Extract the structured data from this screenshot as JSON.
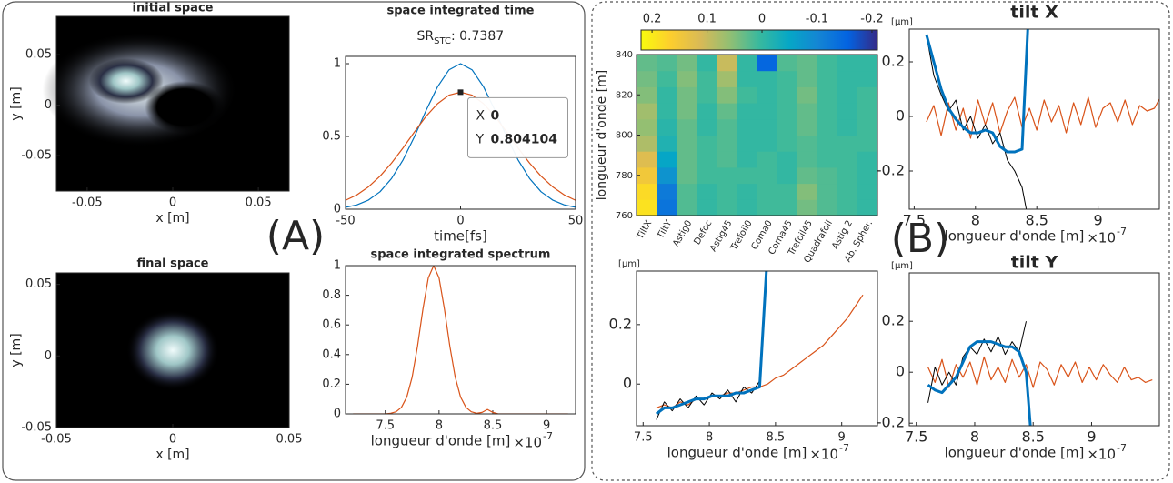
{
  "panel_labels": [
    "(A)",
    "(B)"
  ],
  "chart_data": [
    {
      "type": "image",
      "title": "initial space",
      "xlabel": "x [m]",
      "ylabel": "y [m]",
      "xlim": [
        -0.068,
        0.068
      ],
      "xticks": [
        -0.05,
        0,
        0.05
      ],
      "ylim": [
        -0.085,
        0.088
      ],
      "yticks": [
        0.05,
        0,
        -0.05
      ]
    },
    {
      "type": "line",
      "title": "space integrated time",
      "annotation": {
        "text": "SR",
        "subscript": "STC",
        "suffix": ": 0.7387"
      },
      "xlabel": "time[fs]",
      "xlim": [
        -50,
        50
      ],
      "xticks": [
        -50,
        0,
        50
      ],
      "ylim": [
        0,
        1.05
      ],
      "yticks": [
        0,
        0.5,
        1
      ],
      "x": [
        -50,
        -45,
        -40,
        -35,
        -30,
        -25,
        -20,
        -15,
        -10,
        -5,
        0,
        5,
        10,
        15,
        20,
        25,
        30,
        35,
        40,
        45,
        50
      ],
      "series": [
        {
          "color": "#0072bd",
          "linewidth": 1.2,
          "values": [
            0.013,
            0.03,
            0.063,
            0.12,
            0.211,
            0.339,
            0.5,
            0.678,
            0.841,
            0.958,
            1,
            0.958,
            0.841,
            0.678,
            0.5,
            0.339,
            0.211,
            0.12,
            0.063,
            0.03,
            0.013
          ]
        },
        {
          "color": "#d95319",
          "linewidth": 1.2,
          "values": [
            0.061,
            0.099,
            0.154,
            0.227,
            0.317,
            0.421,
            0.532,
            0.638,
            0.725,
            0.784,
            0.804,
            0.784,
            0.725,
            0.638,
            0.532,
            0.421,
            0.317,
            0.227,
            0.154,
            0.099,
            0.061
          ]
        }
      ],
      "datatip": {
        "x_name": "X",
        "x": 0,
        "y_name": "Y",
        "y": 0.804104
      }
    },
    {
      "type": "image",
      "title": "final space",
      "xlabel": "x [m]",
      "ylabel": "y [m]",
      "xlim": [
        -0.05,
        0.05
      ],
      "xticks": [
        -0.05,
        0,
        0.05
      ],
      "ylim": [
        -0.05,
        0.058
      ],
      "yticks": [
        0.05,
        0,
        -0.05
      ]
    },
    {
      "type": "line",
      "title": "space integrated spectrum",
      "xlabel": "longueur d'onde [m]",
      "x_multiplier": {
        "base": "×10",
        "exponent": "-7"
      },
      "xlim": [
        7.13,
        9.27
      ],
      "xticks": [
        7.5,
        8,
        8.5,
        9
      ],
      "ylim": [
        0,
        1
      ],
      "yticks": [
        0,
        0.2,
        0.4,
        0.6,
        0.8,
        1
      ],
      "x": [
        7.2,
        7.25,
        7.3,
        7.35,
        7.4,
        7.45,
        7.5,
        7.55,
        7.6,
        7.65,
        7.7,
        7.75,
        7.8,
        7.85,
        7.9,
        7.95,
        8,
        8.05,
        8.1,
        8.15,
        8.2,
        8.25,
        8.3,
        8.35,
        8.4,
        8.45,
        8.5,
        8.55,
        8.6,
        8.65,
        8.7,
        8.75,
        8.8,
        8.85,
        8.9,
        8.95,
        9,
        9.05,
        9.1,
        9.15,
        9.2
      ],
      "series": [
        {
          "color": "#d95319",
          "linewidth": 1.2,
          "values": [
            0,
            0,
            0,
            0,
            0,
            0,
            0,
            0.004,
            0.014,
            0.044,
            0.114,
            0.249,
            0.458,
            0.707,
            0.917,
            1,
            0.917,
            0.707,
            0.458,
            0.249,
            0.114,
            0.044,
            0.014,
            0.004,
            0.01,
            0.03,
            0.01,
            0,
            0,
            0,
            0,
            0,
            0,
            0,
            0,
            0,
            0,
            0,
            0,
            0,
            0
          ]
        }
      ]
    },
    {
      "type": "heatmap",
      "ylabel": "longueur d'onde [m]",
      "ylim": [
        760,
        840
      ],
      "yticks": [
        760,
        780,
        800,
        820,
        840
      ],
      "categories": [
        "TiltX",
        "TiltY",
        "Astig0",
        "Defoc",
        "Astig45",
        "Trefoil0",
        "Coma0",
        "Coma45",
        "Trefoil45",
        "Quadrafoil",
        "Astig 2",
        "Ab. Spher."
      ],
      "clim": [
        0.22,
        -0.21
      ],
      "cticks": [
        0.2,
        0.1,
        0,
        -0.1,
        -0.2
      ],
      "colormap": [
        "#f9fb0e",
        "#fcce2e",
        "#d9ba56",
        "#92bf73",
        "#38b99e",
        "#06a7c6",
        "#1485d4",
        "#0363e1",
        "#352a87"
      ],
      "values": [
        [
          0.19,
          -0.13,
          0.02,
          0,
          0.01,
          0,
          0.01,
          0.01,
          0.04,
          0.02,
          0.01,
          0
        ],
        [
          0.18,
          -0.12,
          0.02,
          0,
          0.01,
          0,
          0.01,
          0.01,
          0.05,
          0.02,
          0.01,
          0
        ],
        [
          0.15,
          -0.08,
          0.03,
          0.01,
          0.01,
          0.01,
          0.01,
          0,
          0.03,
          0.02,
          0.01,
          0
        ],
        [
          0.12,
          -0.05,
          0.03,
          0.01,
          0.02,
          0,
          0.01,
          0,
          0.02,
          0.01,
          0.01,
          0
        ],
        [
          0.08,
          -0.02,
          0.03,
          0.01,
          0.02,
          0,
          0,
          0.01,
          0.02,
          0.01,
          0.01,
          0.01
        ],
        [
          0.06,
          -0.01,
          0.03,
          0,
          0.02,
          0,
          0,
          0.01,
          0.03,
          0.01,
          0,
          0.01
        ],
        [
          0.07,
          0,
          0.04,
          0,
          0.03,
          0,
          0,
          0.01,
          0.03,
          0.01,
          0,
          0.01
        ],
        [
          0.05,
          0,
          0.04,
          0.01,
          0.05,
          0.01,
          0,
          0.01,
          0.04,
          0.01,
          0,
          0.01
        ],
        [
          0.04,
          0.01,
          0.05,
          0.01,
          0.07,
          0,
          0,
          0.01,
          0.03,
          0.01,
          0,
          0
        ],
        [
          0.03,
          0.02,
          0.04,
          0,
          0.1,
          0,
          -0.15,
          0.02,
          0.03,
          0.01,
          0,
          0
        ]
      ]
    },
    {
      "type": "line",
      "title": "tilt X",
      "ylabel": "[µm]",
      "xlabel": "longueur d'onde [m]",
      "x_multiplier": {
        "base": "×10",
        "exponent": "-7"
      },
      "xlim": [
        7.46,
        9.5
      ],
      "xticks": [
        7.5,
        8,
        8.5,
        9
      ],
      "ylim": [
        -0.34,
        0.32
      ],
      "yticks": [
        -0.2,
        0,
        0.2
      ],
      "x": [
        7.6,
        7.66,
        7.72,
        7.78,
        7.84,
        7.9,
        7.96,
        8.02,
        8.08,
        8.14,
        8.2,
        8.26,
        8.32,
        8.38,
        8.44,
        8.5,
        8.56,
        8.62,
        8.68,
        8.74,
        8.8,
        8.86,
        8.92,
        8.98,
        9.04,
        9.1,
        9.16,
        9.22,
        9.28,
        9.34,
        9.4,
        9.46,
        9.52
      ],
      "series": [
        {
          "color": "#d95319",
          "linewidth": 1.2,
          "values": [
            -0.02,
            0.04,
            -0.07,
            0.05,
            -0.05,
            0.03,
            -0.08,
            0.06,
            -0.03,
            0.05,
            -0.06,
            0.02,
            0.07,
            -0.04,
            0.03,
            -0.05,
            0.06,
            -0.02,
            0.04,
            -0.06,
            0.05,
            -0.03,
            0.07,
            -0.04,
            0.03,
            0.05,
            -0.02,
            0.06,
            -0.03,
            0.04,
            0.02,
            0.03,
            0.08
          ]
        },
        {
          "color": "#000000",
          "linewidth": 1,
          "values": [
            0.3,
            0.15,
            0.08,
            0.02,
            0.06,
            -0.05,
            0,
            -0.08,
            -0.03,
            -0.1,
            -0.06,
            -0.16,
            -0.2,
            -0.26,
            -0.4,
            null,
            null,
            null,
            null,
            null,
            null,
            null,
            null,
            null,
            null,
            null,
            null,
            null,
            null,
            null,
            null,
            null,
            null
          ]
        },
        {
          "color": "#0072bd",
          "linewidth": 3,
          "values": [
            0.3,
            0.2,
            0.1,
            0.03,
            -0.01,
            -0.04,
            -0.06,
            -0.06,
            -0.05,
            -0.06,
            -0.11,
            -0.13,
            -0.13,
            -0.12,
            0.45,
            null,
            null,
            null,
            null,
            null,
            null,
            null,
            null,
            null,
            null,
            null,
            null,
            null,
            null,
            null,
            null,
            null,
            null
          ]
        }
      ]
    },
    {
      "type": "line",
      "ylabel": "[µm]",
      "xlabel": "longueur d'onde [m]",
      "x_multiplier": {
        "base": "×10",
        "exponent": "-7"
      },
      "xlim": [
        7.45,
        9.27
      ],
      "xticks": [
        7.5,
        8,
        8.5,
        9
      ],
      "ylim": [
        -0.14,
        0.38
      ],
      "yticks": [
        0,
        0.2
      ],
      "x": [
        7.6,
        7.66,
        7.72,
        7.78,
        7.84,
        7.9,
        7.96,
        8.02,
        8.08,
        8.14,
        8.2,
        8.26,
        8.32,
        8.38,
        8.44,
        8.5,
        8.56,
        8.62,
        8.68,
        8.74,
        8.8,
        8.86,
        8.92,
        8.98,
        9.04,
        9.1,
        9.16,
        9.22,
        9.28,
        9.34,
        9.4,
        9.46,
        9.52
      ],
      "series": [
        {
          "color": "#d95319",
          "linewidth": 1.2,
          "values": [
            -0.08,
            -0.07,
            -0.08,
            -0.06,
            -0.07,
            -0.05,
            -0.05,
            -0.04,
            -0.04,
            -0.03,
            -0.03,
            -0.02,
            -0.01,
            -0.01,
            0,
            0.02,
            0.03,
            0.05,
            0.07,
            0.09,
            0.11,
            0.13,
            0.16,
            0.19,
            0.22,
            0.26,
            0.3,
            null,
            null,
            null,
            null,
            null,
            null
          ]
        },
        {
          "color": "#000000",
          "linewidth": 1,
          "values": [
            -0.12,
            -0.06,
            -0.09,
            -0.05,
            -0.08,
            -0.04,
            -0.07,
            -0.03,
            -0.05,
            -0.02,
            -0.06,
            -0.01,
            -0.03,
            0.01,
            0.45,
            null,
            null,
            null,
            null,
            null,
            null,
            null,
            null,
            null,
            null,
            null,
            null,
            null,
            null,
            null,
            null,
            null,
            null
          ]
        },
        {
          "color": "#0072bd",
          "linewidth": 3,
          "values": [
            -0.1,
            -0.08,
            -0.08,
            -0.07,
            -0.06,
            -0.05,
            -0.05,
            -0.04,
            -0.04,
            -0.04,
            -0.03,
            -0.03,
            -0.02,
            -0.01,
            0.45,
            null,
            null,
            null,
            null,
            null,
            null,
            null,
            null,
            null,
            null,
            null,
            null,
            null,
            null,
            null,
            null,
            null,
            null
          ]
        }
      ]
    },
    {
      "type": "line",
      "title": "tilt Y",
      "ylabel": "[µm]",
      "xlabel": "longueur d'onde [m]",
      "x_multiplier": {
        "base": "×10",
        "exponent": "-7"
      },
      "xlim": [
        7.44,
        9.58
      ],
      "xticks": [
        7.5,
        8,
        8.5,
        9
      ],
      "ylim": [
        -0.21,
        0.39
      ],
      "yticks": [
        -0.2,
        0,
        0.2
      ],
      "x": [
        7.6,
        7.66,
        7.72,
        7.78,
        7.84,
        7.9,
        7.96,
        8.02,
        8.08,
        8.14,
        8.2,
        8.26,
        8.32,
        8.38,
        8.44,
        8.5,
        8.56,
        8.62,
        8.68,
        8.74,
        8.8,
        8.86,
        8.92,
        8.98,
        9.04,
        9.1,
        9.16,
        9.22,
        9.28,
        9.34,
        9.4,
        9.46,
        9.52
      ],
      "series": [
        {
          "color": "#d95319",
          "linewidth": 1.2,
          "values": [
            0.02,
            -0.04,
            0.05,
            -0.06,
            0.03,
            -0.02,
            0.04,
            -0.05,
            0.06,
            -0.03,
            0.02,
            -0.04,
            0.05,
            -0.02,
            0.03,
            -0.06,
            0.04,
            0.01,
            -0.05,
            0.03,
            -0.02,
            0.04,
            -0.04,
            0.02,
            -0.03,
            0.03,
            -0.01,
            -0.04,
            0.02,
            -0.03,
            -0.02,
            -0.04,
            -0.03
          ]
        },
        {
          "color": "#000000",
          "linewidth": 1,
          "values": [
            -0.12,
            0.02,
            -0.05,
            0,
            -0.05,
            0.06,
            0.1,
            0.07,
            0.13,
            0.08,
            0.14,
            0.07,
            0.12,
            0.08,
            0.2,
            null,
            null,
            null,
            null,
            null,
            null,
            null,
            null,
            null,
            null,
            null,
            null,
            null,
            null,
            null,
            null,
            null,
            null
          ]
        },
        {
          "color": "#0072bd",
          "linewidth": 3,
          "values": [
            -0.05,
            -0.07,
            -0.08,
            -0.05,
            -0.02,
            0.04,
            0.1,
            0.12,
            0.12,
            0.12,
            0.11,
            0.1,
            0.1,
            0.08,
            0,
            -0.35,
            null,
            null,
            null,
            null,
            null,
            null,
            null,
            null,
            null,
            null,
            null,
            null,
            null,
            null,
            null,
            null,
            null
          ]
        }
      ]
    }
  ]
}
